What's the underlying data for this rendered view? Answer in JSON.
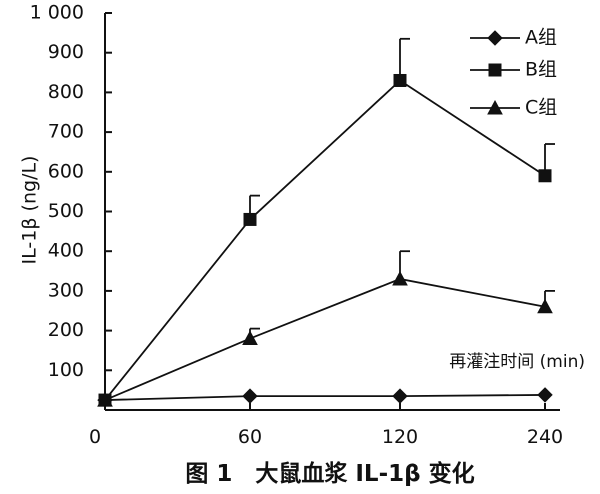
{
  "chart_data": {
    "type": "line",
    "title": "",
    "caption": "图 1　大鼠血浆 IL-1β 变化",
    "xlabel": "再灌注时间 (min)",
    "ylabel": "IL-1β (ng/L)",
    "categories": [
      "0",
      "60",
      "120",
      "240"
    ],
    "ylim": [
      0,
      1000
    ],
    "yticks": [
      "1 000",
      "900",
      "800",
      "700",
      "600",
      "500",
      "400",
      "300",
      "200",
      "100"
    ],
    "ytick_values": [
      1000,
      900,
      800,
      700,
      600,
      500,
      400,
      300,
      200,
      100
    ],
    "grid": false,
    "legend_position": "top-right",
    "series": [
      {
        "name": "A组",
        "marker": "diamond",
        "values": [
          25,
          35,
          35,
          38
        ],
        "errors": [
          0,
          0,
          0,
          0
        ]
      },
      {
        "name": "B组",
        "marker": "square",
        "values": [
          25,
          480,
          830,
          590
        ],
        "errors": [
          0,
          60,
          105,
          80
        ]
      },
      {
        "name": "C组",
        "marker": "triangle",
        "values": [
          25,
          180,
          330,
          260
        ],
        "errors": [
          0,
          25,
          70,
          40
        ]
      }
    ]
  }
}
